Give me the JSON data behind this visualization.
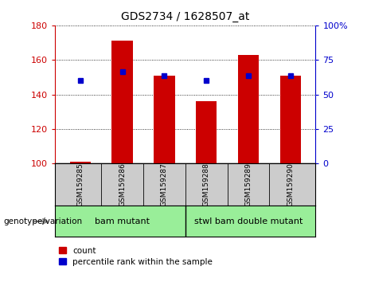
{
  "title": "GDS2734 / 1628507_at",
  "categories": [
    "GSM159285",
    "GSM159286",
    "GSM159287",
    "GSM159288",
    "GSM159289",
    "GSM159290"
  ],
  "bar_heights": [
    101,
    171,
    151,
    136,
    163,
    151
  ],
  "bar_base": 100,
  "bar_color": "#cc0000",
  "percentile_values": [
    148,
    153,
    151,
    148,
    151,
    151
  ],
  "percentile_color": "#0000cc",
  "ylim_left": [
    100,
    180
  ],
  "ylim_right": [
    0,
    100
  ],
  "yticks_left": [
    100,
    120,
    140,
    160,
    180
  ],
  "yticks_right": [
    0,
    25,
    50,
    75,
    100
  ],
  "yticklabels_right": [
    "0",
    "25",
    "50",
    "75",
    "100%"
  ],
  "group1_label": "bam mutant",
  "group2_label": "stwl bam double mutant",
  "group1_indices": [
    0,
    1,
    2
  ],
  "group2_indices": [
    3,
    4,
    5
  ],
  "group_label_prefix": "genotype/variation",
  "group_bg_color": "#99ee99",
  "tick_area_bg": "#cccccc",
  "legend_count_label": "count",
  "legend_percentile_label": "percentile rank within the sample",
  "bar_width": 0.5,
  "grid_color": "#000000",
  "axis_label_color_left": "#cc0000",
  "axis_label_color_right": "#0000cc"
}
